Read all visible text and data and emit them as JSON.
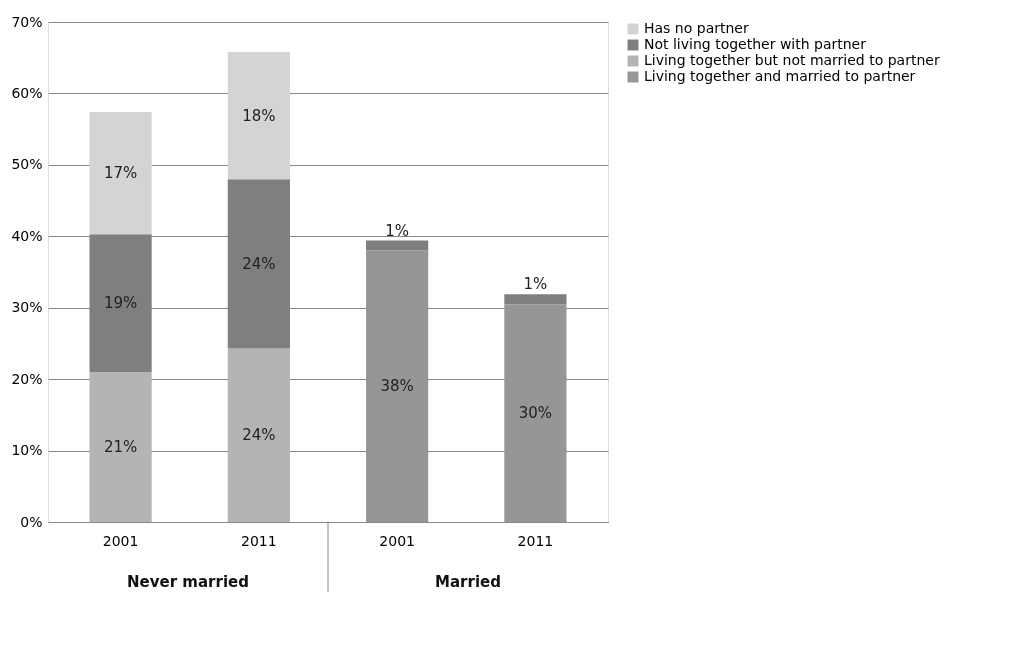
{
  "chart_data": {
    "type": "bar",
    "stacked": true,
    "categories": [
      "2001",
      "2011",
      "2001",
      "2011"
    ],
    "series": [
      {
        "name": "Living together and married to partner",
        "color": "#969696",
        "values": [
          null,
          null,
          38,
          30.5
        ],
        "value_labels": [
          null,
          null,
          "38%",
          "30%"
        ]
      },
      {
        "name": "Living together but not married to partner",
        "color": "#b4b4b4",
        "values": [
          21,
          24.3,
          null,
          null
        ],
        "value_labels": [
          "21%",
          "24%",
          null,
          null
        ]
      },
      {
        "name": "Not living together with partner",
        "color": "#7f7f7f",
        "values": [
          19.3,
          23.7,
          1.4,
          1.4
        ],
        "value_labels": [
          "19%",
          "24%",
          "1%",
          "1%"
        ]
      },
      {
        "name": "Has no partner",
        "color": "#d4d4d4",
        "values": [
          17.1,
          17.8,
          null,
          null
        ],
        "value_labels": [
          "17%",
          "18%",
          null,
          null
        ]
      }
    ],
    "ylim": [
      0,
      70
    ],
    "yticks": [
      {
        "value": 0,
        "label": "0%"
      },
      {
        "value": 10,
        "label": "10%"
      },
      {
        "value": 20,
        "label": "20%"
      },
      {
        "value": 30,
        "label": "30%"
      },
      {
        "value": 40,
        "label": "40%"
      },
      {
        "value": 50,
        "label": "50%"
      },
      {
        "value": 60,
        "label": "60%"
      },
      {
        "value": 70,
        "label": "70%"
      }
    ],
    "grid": "y",
    "legend": "right",
    "annotations": [
      "Never married",
      "Married"
    ]
  }
}
